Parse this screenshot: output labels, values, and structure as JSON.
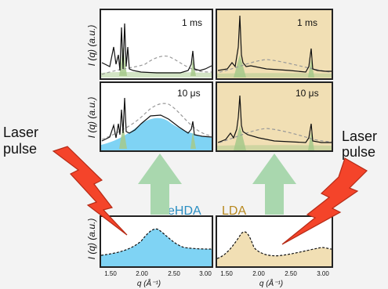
{
  "panels": {
    "top_left_label": "1 ms",
    "top_right_label": "1 ms",
    "mid_left_label": "10 μs",
    "mid_right_label": "10 μs",
    "bottom_left_label": "eHDA",
    "bottom_right_label": "LDA"
  },
  "ylabel": "I (q) (a.u.)",
  "xlabel": "q (Å⁻¹)",
  "x_ticks_left": [
    "1.50",
    "2.00",
    "2.50",
    "3.00"
  ],
  "x_ticks_right": [
    "1.50",
    "2.00",
    "2.50",
    "3.00"
  ],
  "laser_left": [
    "Laser",
    "pulse"
  ],
  "laser_right": [
    "Laser",
    "pulse"
  ],
  "colors": {
    "ehda_fill": "#7fd3f4",
    "lda_fill": "#f1dfb4",
    "arrow_green": "#a9d7ae",
    "bolt_red": "#f4442a",
    "peak_green": "#a6c98a",
    "ehda_text": "#2a8ec2",
    "lda_text": "#b8891f"
  }
}
